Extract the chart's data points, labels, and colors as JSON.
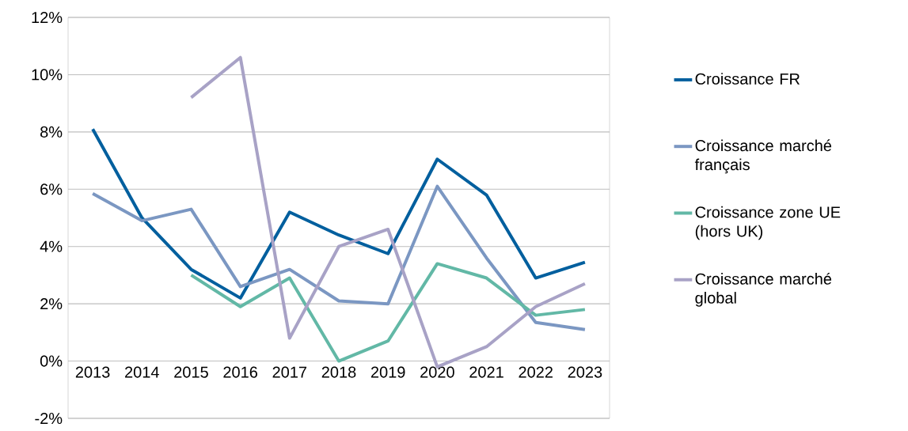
{
  "chart_data": {
    "type": "line",
    "categories": [
      "2013",
      "2014",
      "2015",
      "2016",
      "2017",
      "2018",
      "2019",
      "2020",
      "2021",
      "2022",
      "2023"
    ],
    "series": [
      {
        "name": "Croissance FR",
        "color": "#005f9e",
        "values": [
          8.1,
          5.0,
          3.2,
          2.2,
          5.2,
          4.4,
          3.75,
          7.05,
          5.8,
          2.9,
          3.45
        ]
      },
      {
        "name": "Croissance marché français",
        "color": "#7b97c2",
        "values": [
          5.85,
          4.9,
          5.3,
          2.6,
          3.2,
          2.1,
          2.0,
          6.1,
          3.6,
          1.35,
          1.1
        ]
      },
      {
        "name": "Croissance zone UE (hors UK)",
        "color": "#62b8a6",
        "values": [
          null,
          null,
          3.0,
          1.9,
          2.9,
          0.0,
          0.7,
          3.4,
          2.9,
          1.6,
          1.8
        ]
      },
      {
        "name": "Croissance marché global",
        "color": "#a8a2c6",
        "values": [
          null,
          null,
          9.2,
          10.6,
          0.8,
          4.0,
          4.6,
          -0.2,
          0.5,
          1.9,
          2.7
        ]
      }
    ],
    "ylim": [
      -2,
      12
    ],
    "yticks": [
      {
        "value": -2,
        "label": "-2%"
      },
      {
        "value": 0,
        "label": "0%"
      },
      {
        "value": 2,
        "label": "2%"
      },
      {
        "value": 4,
        "label": "4%"
      },
      {
        "value": 6,
        "label": "6%"
      },
      {
        "value": 8,
        "label": "8%"
      },
      {
        "value": 10,
        "label": "10%"
      },
      {
        "value": 12,
        "label": "12%"
      }
    ],
    "grid": "y",
    "legend": "right",
    "marker": "none",
    "line_style": "solid"
  }
}
